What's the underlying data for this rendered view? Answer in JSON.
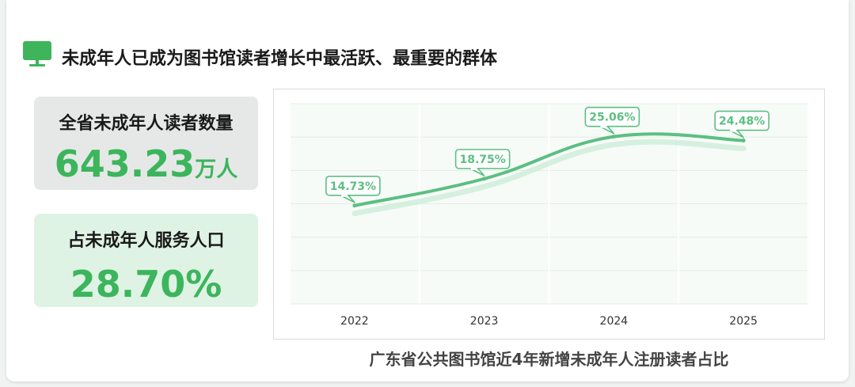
{
  "title": "未成年人已成为图书馆读者增长中最活跃、最重要的群体",
  "colors": {
    "accent": "#3fb55b",
    "value_green": "#3cb55c",
    "line_green": "#5bbf82"
  },
  "stats": [
    {
      "label": "全省未成年人读者数量",
      "value": "643.23",
      "unit": "万人"
    },
    {
      "label": "占未成年人服务人口",
      "value": "28.70%",
      "unit": ""
    }
  ],
  "chart_data": {
    "type": "line",
    "title": "广东省公共图书馆近4年新增未成年人注册读者占比",
    "categories": [
      "2022",
      "2023",
      "2024",
      "2025"
    ],
    "series": [
      {
        "values": [
          14.73,
          18.75,
          25.06,
          24.48
        ],
        "labels": [
          "14.73%",
          "18.75%",
          "25.06%",
          "24.48%"
        ]
      }
    ],
    "xlabel": "",
    "ylabel": "",
    "ylim": [
      0,
      30
    ],
    "grid": true,
    "legend": "none"
  }
}
